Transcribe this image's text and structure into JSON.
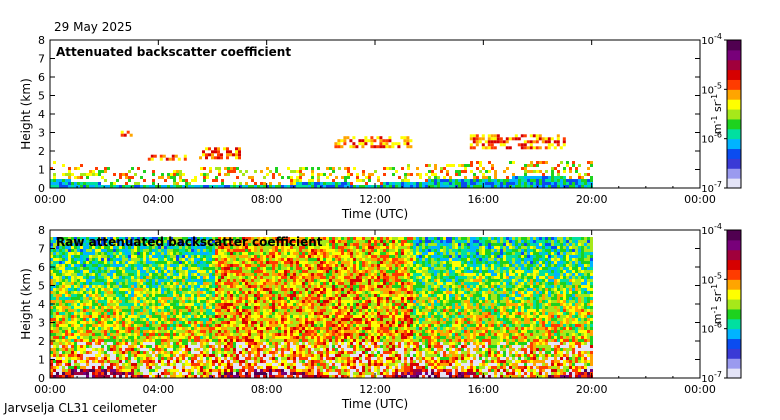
{
  "header": {
    "date": "29 May 2025"
  },
  "footer": {
    "station": "Jarvselja CL31 ceilometer"
  },
  "colors": {
    "colormap": [
      "#e4e4f7",
      "#9a9aef",
      "#3a3ad6",
      "#0a4cf0",
      "#00b4ff",
      "#00e0a0",
      "#1ed21e",
      "#a6e81a",
      "#ffff00",
      "#ffa500",
      "#ff3c00",
      "#d60000",
      "#a0003c",
      "#78007a",
      "#500050"
    ]
  },
  "chart_data": [
    {
      "type": "heatmap",
      "title": "Attenuated backscatter coefficient",
      "xlabel": "Time (UTC)",
      "ylabel": "Height (km)",
      "x_ticks": [
        "00:00",
        "04:00",
        "08:00",
        "12:00",
        "16:00",
        "20:00",
        "00:00"
      ],
      "x_range_hours": [
        0,
        24
      ],
      "y_ticks": [
        "0",
        "1",
        "2",
        "3",
        "4",
        "5",
        "6",
        "7",
        "8"
      ],
      "y_range_km": [
        0,
        8
      ],
      "data_end_hour": 19.95,
      "colorbar": {
        "label": "m-1 sr-1",
        "scale": "log",
        "ticks": [
          "10-7",
          "10-6",
          "10-5",
          "10-4"
        ],
        "range": [
          1e-07,
          0.0001
        ]
      },
      "features": {
        "boundary_layer_km": [
          [
            0,
            0.6
          ],
          [
            2,
            0.3
          ],
          [
            4,
            0.2
          ],
          [
            6,
            0.25
          ],
          [
            8,
            0.3
          ],
          [
            10,
            0.35
          ],
          [
            12,
            0.3
          ],
          [
            14,
            0.5
          ],
          [
            16,
            0.6
          ],
          [
            18,
            0.7
          ],
          [
            19.95,
            0.6
          ]
        ],
        "cloud_layers": [
          {
            "start_h": 2.5,
            "end_h": 3.0,
            "base_km": 2.9,
            "top_km": 3.1
          },
          {
            "start_h": 3.5,
            "end_h": 5.0,
            "base_km": 1.5,
            "top_km": 1.8
          },
          {
            "start_h": 5.5,
            "end_h": 7.0,
            "base_km": 1.7,
            "top_km": 2.2
          },
          {
            "start_h": 10.5,
            "end_h": 13.3,
            "base_km": 2.2,
            "top_km": 2.8
          },
          {
            "start_h": 15.5,
            "end_h": 19.0,
            "base_km": 2.2,
            "top_km": 2.9
          }
        ]
      }
    },
    {
      "type": "heatmap",
      "title": "Raw attenuated backscatter coefficient",
      "xlabel": "Time (UTC)",
      "ylabel": "Height (km)",
      "x_ticks": [
        "00:00",
        "04:00",
        "08:00",
        "12:00",
        "16:00",
        "20:00",
        "00:00"
      ],
      "x_range_hours": [
        0,
        24
      ],
      "y_ticks": [
        "0",
        "1",
        "2",
        "3",
        "4",
        "5",
        "6",
        "7",
        "8"
      ],
      "y_range_km": [
        0,
        8
      ],
      "data_end_hour": 19.95,
      "data_top_km": 7.7,
      "colorbar": {
        "label": "m-1 sr-1",
        "scale": "log",
        "ticks": [
          "10-7",
          "10-6",
          "10-5",
          "10-4"
        ],
        "range": [
          1e-07,
          0.0001
        ]
      }
    }
  ]
}
